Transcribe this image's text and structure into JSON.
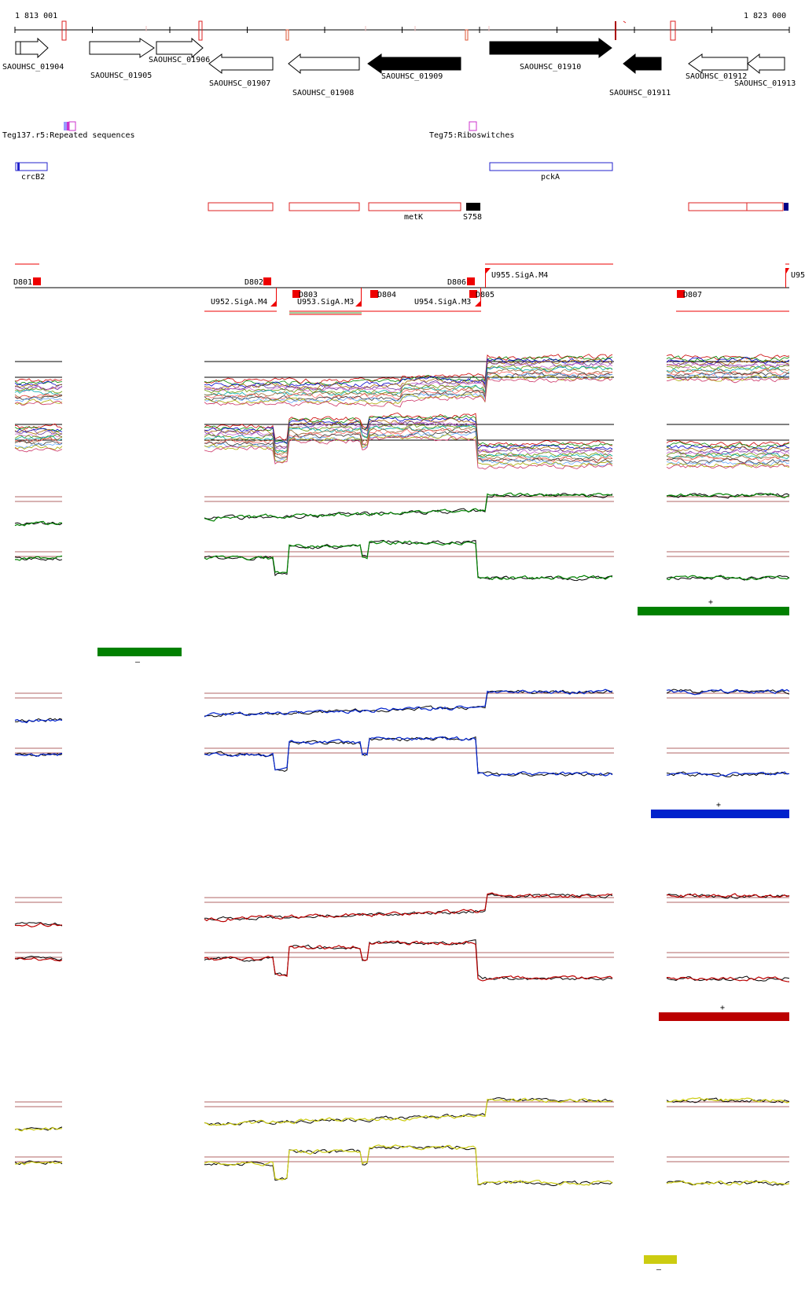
{
  "ruler": {
    "start_label": "1 813 001",
    "end_label": "1 823 000"
  },
  "genes": [
    {
      "label": "SAOUHSC_01904",
      "strand": "+",
      "filled": false
    },
    {
      "label": "SAOUHSC_01905",
      "strand": "+",
      "filled": false
    },
    {
      "label": "SAOUHSC_01906",
      "strand": "+",
      "filled": false
    },
    {
      "label": "SAOUHSC_01907",
      "strand": "-",
      "filled": false
    },
    {
      "label": "SAOUHSC_01908",
      "strand": "-",
      "filled": false
    },
    {
      "label": "SAOUHSC_01909",
      "strand": "-",
      "filled": true
    },
    {
      "label": "SAOUHSC_01910",
      "strand": "+",
      "filled": true
    },
    {
      "label": "SAOUHSC_01911",
      "strand": "-",
      "filled": true
    },
    {
      "label": "SAOUHSC_01912",
      "strand": "-",
      "filled": false
    },
    {
      "label": "SAOUHSC_01913",
      "strand": "-",
      "filled": false
    }
  ],
  "features": [
    {
      "label": "Teg137.r5:Repeated sequences",
      "color": "#cc33cc"
    },
    {
      "label": "Teg75:Riboswitches",
      "color": "#cc33cc"
    }
  ],
  "annotations_blue": [
    {
      "label": "crcB2"
    },
    {
      "label": "pckA"
    }
  ],
  "annotations_red": [
    {
      "label": "metK"
    },
    {
      "label": "S758"
    }
  ],
  "segments": {
    "upper": [
      {
        "label": "D801"
      },
      {
        "label": "D802"
      },
      {
        "label": "D806"
      },
      {
        "label": "U955.SigA.M4"
      },
      {
        "label": "U95"
      }
    ],
    "lower": [
      {
        "label": "U952.SigA.M4"
      },
      {
        "label": "D803"
      },
      {
        "label": "U953.SigA.M3"
      },
      {
        "label": "D804"
      },
      {
        "label": "U954.SigA.M3"
      },
      {
        "label": "D805"
      },
      {
        "label": "D807"
      }
    ]
  },
  "expression_tracks": [
    {
      "color": "#008000",
      "plus_label": "+",
      "minus_label": "–"
    },
    {
      "color": "#0022cc",
      "plus_label": "+"
    },
    {
      "color": "#bb0000",
      "plus_label": "+"
    },
    {
      "color": "#cccc11",
      "minus_label": "–"
    }
  ],
  "colors": {
    "marker_red": "#ee0000",
    "outline_red": "#dd2222",
    "outline_blue": "#2222cc",
    "baseline_brown": "#993333"
  }
}
